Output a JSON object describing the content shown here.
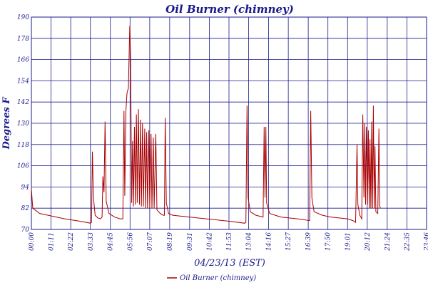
{
  "chart_data": {
    "type": "line",
    "title": "Oil Burner (chimney)",
    "xlabel": "04/23/13 (EST)",
    "ylabel": "Degrees F",
    "ylim": [
      70,
      190
    ],
    "yticks": [
      70,
      82,
      94,
      106,
      118,
      130,
      142,
      154,
      166,
      178,
      190
    ],
    "xlim": [
      "00:00",
      "23:46"
    ],
    "xticks": [
      "00:00",
      "01:11",
      "02:22",
      "03:33",
      "04:45",
      "05:56",
      "07:07",
      "08:19",
      "09:31",
      "10:42",
      "11:53",
      "13:04",
      "14:16",
      "15:27",
      "16:39",
      "17:50",
      "19:01",
      "20:12",
      "21:24",
      "22:35",
      "23:46"
    ],
    "grid": true,
    "legend_position": "bottom-center",
    "colors": {
      "series": "#aa0000",
      "grid": "#1a1a8c",
      "text": "#1a1a8c"
    },
    "series": [
      {
        "name": "Oil Burner (chimney)",
        "points": [
          [
            "00:00",
            93
          ],
          [
            "00:05",
            82
          ],
          [
            "00:30",
            79
          ],
          [
            "01:00",
            78
          ],
          [
            "02:00",
            76
          ],
          [
            "03:00",
            74.5
          ],
          [
            "03:33",
            73.5
          ],
          [
            "03:37",
            74
          ],
          [
            "03:40",
            114
          ],
          [
            "03:44",
            88
          ],
          [
            "03:50",
            78
          ],
          [
            "04:00",
            76.5
          ],
          [
            "04:10",
            76
          ],
          [
            "04:15",
            77
          ],
          [
            "04:18",
            100
          ],
          [
            "04:22",
            91
          ],
          [
            "04:26",
            131
          ],
          [
            "04:30",
            86
          ],
          [
            "04:40",
            79
          ],
          [
            "05:00",
            77
          ],
          [
            "05:20",
            76
          ],
          [
            "05:30",
            76
          ],
          [
            "05:34",
            137
          ],
          [
            "05:37",
            89
          ],
          [
            "05:41",
            137
          ],
          [
            "05:45",
            147
          ],
          [
            "05:50",
            150
          ],
          [
            "05:55",
            185
          ],
          [
            "05:58",
            166
          ],
          [
            "06:02",
            85
          ],
          [
            "06:05",
            120
          ],
          [
            "06:08",
            83
          ],
          [
            "06:12",
            128
          ],
          [
            "06:15",
            84
          ],
          [
            "06:19",
            135
          ],
          [
            "06:22",
            85
          ],
          [
            "06:26",
            138
          ],
          [
            "06:30",
            84
          ],
          [
            "06:34",
            132
          ],
          [
            "06:37",
            83
          ],
          [
            "06:41",
            130
          ],
          [
            "06:44",
            83
          ],
          [
            "06:49",
            127
          ],
          [
            "06:52",
            82
          ],
          [
            "06:56",
            125
          ],
          [
            "06:59",
            82
          ],
          [
            "07:04",
            126
          ],
          [
            "07:07",
            82
          ],
          [
            "07:12",
            124
          ],
          [
            "07:15",
            82
          ],
          [
            "07:20",
            122
          ],
          [
            "07:23",
            82
          ],
          [
            "07:29",
            124
          ],
          [
            "07:33",
            81
          ],
          [
            "07:45",
            79
          ],
          [
            "07:55",
            78
          ],
          [
            "08:00",
            78
          ],
          [
            "08:03",
            133
          ],
          [
            "08:07",
            85
          ],
          [
            "08:15",
            79
          ],
          [
            "08:30",
            78
          ],
          [
            "09:00",
            77.5
          ],
          [
            "10:00",
            76.5
          ],
          [
            "11:00",
            75.5
          ],
          [
            "12:00",
            74.5
          ],
          [
            "12:50",
            73.5
          ],
          [
            "12:54",
            74
          ],
          [
            "12:58",
            140
          ],
          [
            "13:02",
            88
          ],
          [
            "13:10",
            80
          ],
          [
            "13:30",
            78
          ],
          [
            "13:56",
            77
          ],
          [
            "14:00",
            128
          ],
          [
            "14:03",
            88
          ],
          [
            "14:06",
            128
          ],
          [
            "14:09",
            85
          ],
          [
            "14:20",
            79
          ],
          [
            "14:40",
            78
          ],
          [
            "15:00",
            77
          ],
          [
            "16:00",
            76
          ],
          [
            "16:44",
            75
          ],
          [
            "16:48",
            137
          ],
          [
            "16:52",
            88
          ],
          [
            "17:00",
            80
          ],
          [
            "17:30",
            78
          ],
          [
            "18:00",
            77
          ],
          [
            "19:00",
            76
          ],
          [
            "19:20",
            75
          ],
          [
            "19:30",
            74
          ],
          [
            "19:35",
            118
          ],
          [
            "19:38",
            84
          ],
          [
            "19:45",
            78
          ],
          [
            "19:52",
            76
          ],
          [
            "19:56",
            135
          ],
          [
            "20:00",
            88
          ],
          [
            "20:03",
            130
          ],
          [
            "20:06",
            84
          ],
          [
            "20:09",
            128
          ],
          [
            "20:13",
            84
          ],
          [
            "20:16",
            126
          ],
          [
            "20:19",
            82
          ],
          [
            "20:22",
            121
          ],
          [
            "20:25",
            82
          ],
          [
            "20:28",
            131
          ],
          [
            "20:31",
            82
          ],
          [
            "20:34",
            140
          ],
          [
            "20:37",
            82
          ],
          [
            "20:40",
            117
          ],
          [
            "20:43",
            80
          ],
          [
            "20:50",
            79
          ],
          [
            "20:54",
            127
          ],
          [
            "20:57",
            83
          ],
          [
            "21:00",
            82
          ]
        ]
      }
    ]
  }
}
